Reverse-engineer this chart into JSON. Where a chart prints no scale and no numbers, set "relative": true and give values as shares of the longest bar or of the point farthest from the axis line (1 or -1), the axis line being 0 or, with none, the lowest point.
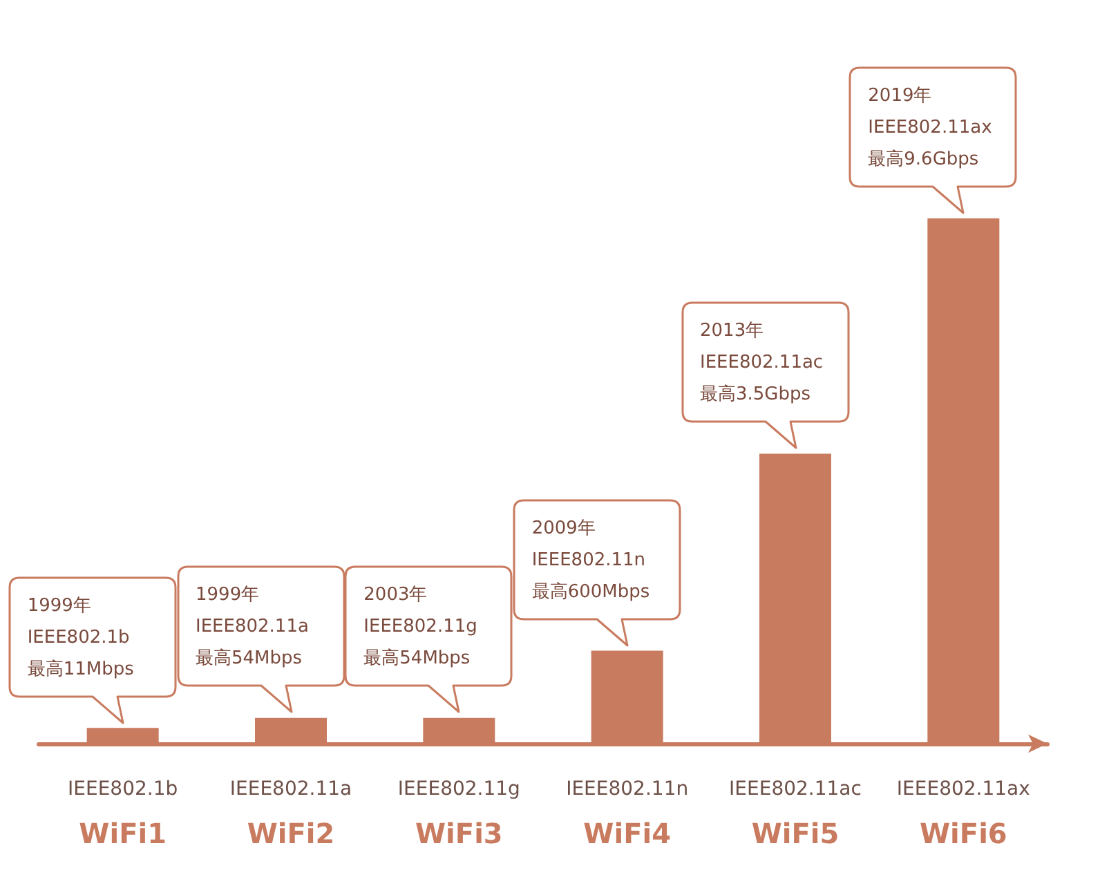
{
  "chart_data": {
    "type": "bar",
    "relative": true,
    "color": "#c97b5f",
    "categories": [
      "IEEE802.1b\nWiFi1",
      "IEEE802.11a\nWiFi2",
      "IEEE802.11g\nWiFi3",
      "IEEE802.11n\nWiFi4",
      "IEEE802.11ac\nWiFi5",
      "IEEE802.11ax\nWiFi6"
    ],
    "values": [
      0.03,
      0.049,
      0.049,
      0.177,
      0.552,
      1
    ],
    "annotations": [
      {
        "text": "1999年\nIEEE802.1b\n最高11Mbps",
        "x": "IEEE802.1b\nWiFi1",
        "y": 0.03
      },
      {
        "text": "1999年\nIEEE802.11a\n最高54Mbps",
        "x": "IEEE802.11a\nWiFi2",
        "y": 0.049
      },
      {
        "text": "2003年\nIEEE802.11g\n最高54Mbps",
        "x": "IEEE802.11g\nWiFi3",
        "y": 0.049
      },
      {
        "text": "2009年\nIEEE802.11n\n最高600Mbps",
        "x": "IEEE802.11n\nWiFi4",
        "y": 0.177
      },
      {
        "text": "2013年\nIEEE802.11ac\n最高3.5Gbps",
        "x": "IEEE802.11ac\nWiFi5",
        "y": 0.552
      },
      {
        "text": "2019年\nIEEE802.11ax\n最高9.6Gbps",
        "x": "IEEE802.11ax\nWiFi6",
        "y": 1
      }
    ],
    "grid": false
  }
}
